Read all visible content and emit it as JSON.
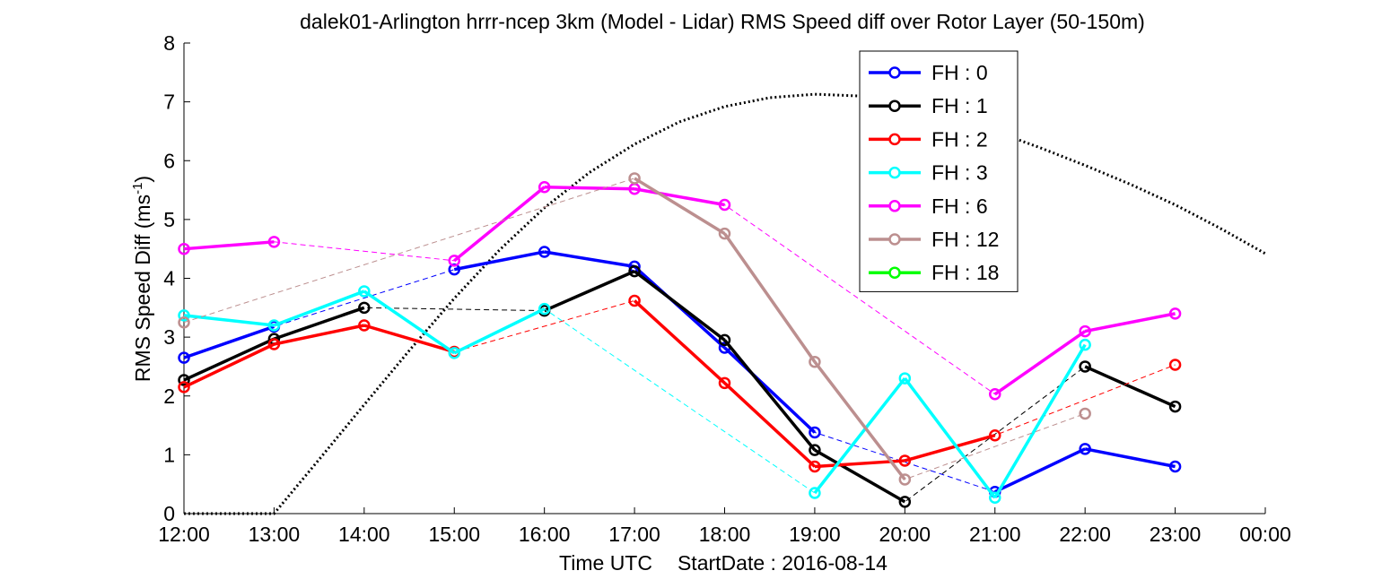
{
  "chart_data": {
    "type": "line",
    "title": "dalek01-Arlington hrrr-ncep 3km (Model - Lidar) RMS Speed diff over Rotor Layer (50-150m)",
    "xlabel": "Time UTC",
    "xlabel_extra": "StartDate : 2016-08-14",
    "ylabel_main": "RMS Speed Diff (ms",
    "ylabel_sup": "-1",
    "ylabel_close": ")",
    "x_categories": [
      "12:00",
      "13:00",
      "14:00",
      "15:00",
      "16:00",
      "17:00",
      "18:00",
      "19:00",
      "20:00",
      "21:00",
      "22:00",
      "23:00",
      "00:00"
    ],
    "ylim": [
      0,
      8
    ],
    "yticks": [
      "0",
      "1",
      "2",
      "3",
      "4",
      "5",
      "6",
      "7",
      "8"
    ],
    "legend_position": "top-right-inside",
    "series": [
      {
        "name": "FH : 0",
        "color": "#0000ff",
        "values": [
          2.65,
          3.18,
          null,
          4.15,
          4.45,
          4.2,
          2.82,
          1.38,
          null,
          0.37,
          1.1,
          0.8,
          null
        ]
      },
      {
        "name": "FH : 1",
        "color": "#000000",
        "values": [
          2.27,
          2.97,
          3.5,
          null,
          3.45,
          4.12,
          2.95,
          1.08,
          0.2,
          null,
          2.5,
          1.82,
          null
        ]
      },
      {
        "name": "FH : 2",
        "color": "#ff0000",
        "values": [
          2.15,
          2.88,
          3.2,
          2.75,
          null,
          3.62,
          2.22,
          0.8,
          0.9,
          1.33,
          null,
          2.53,
          null
        ]
      },
      {
        "name": "FH : 3",
        "color": "#00ffff",
        "values": [
          3.37,
          3.2,
          3.78,
          2.73,
          3.48,
          null,
          null,
          0.35,
          2.3,
          0.27,
          2.87,
          null,
          null
        ]
      },
      {
        "name": "FH : 6",
        "color": "#ff00ff",
        "values": [
          4.5,
          4.62,
          null,
          4.3,
          5.55,
          5.52,
          5.25,
          null,
          null,
          2.03,
          3.1,
          3.4,
          null
        ]
      },
      {
        "name": "FH : 12",
        "color": "#bc8f8f",
        "values": [
          3.25,
          null,
          null,
          null,
          null,
          5.7,
          4.76,
          2.58,
          0.58,
          null,
          1.7,
          null,
          null
        ]
      },
      {
        "name": "FH : 18",
        "color": "#00ff00",
        "values": [
          null,
          null,
          null,
          null,
          null,
          null,
          null,
          null,
          null,
          null,
          null,
          null,
          null
        ]
      }
    ],
    "reference_curve": {
      "style": "dotted",
      "color": "#000000",
      "x": [
        0,
        0.5,
        1,
        1.5,
        2,
        2.5,
        3,
        3.5,
        4,
        4.5,
        5,
        5.5,
        6,
        6.5,
        7,
        7.5,
        8,
        8.5,
        9,
        9.5,
        10,
        10.5,
        11,
        11.5,
        12
      ],
      "y": [
        0,
        0,
        0,
        0.92,
        1.85,
        2.77,
        3.66,
        4.48,
        5.2,
        5.8,
        6.28,
        6.66,
        6.92,
        7.07,
        7.13,
        7.1,
        6.98,
        6.78,
        6.5,
        6.22,
        5.92,
        5.6,
        5.25,
        4.85,
        4.42
      ]
    }
  }
}
